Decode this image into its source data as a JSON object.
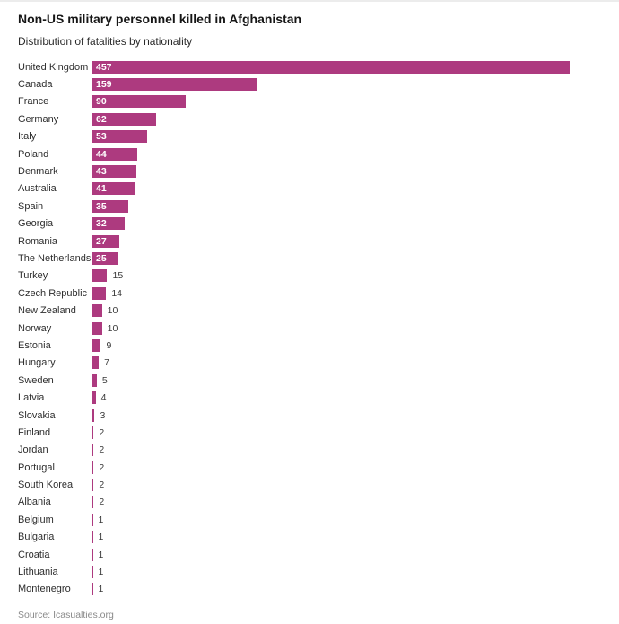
{
  "header": {
    "title": "Non-US military personnel killed in Afghanistan",
    "subtitle": "Distribution of fatalities by nationality"
  },
  "footer": {
    "source": "Source: Icasualties.org"
  },
  "chart_data": {
    "type": "bar",
    "orientation": "horizontal",
    "title": "Non-US military personnel killed in Afghanistan",
    "subtitle": "Distribution of fatalities by nationality",
    "categories": [
      "United Kingdom",
      "Canada",
      "France",
      "Germany",
      "Italy",
      "Poland",
      "Denmark",
      "Australia",
      "Spain",
      "Georgia",
      "Romania",
      "The Netherlands",
      "Turkey",
      "Czech Republic",
      "New Zealand",
      "Norway",
      "Estonia",
      "Hungary",
      "Sweden",
      "Latvia",
      "Slovakia",
      "Finland",
      "Jordan",
      "Portugal",
      "South Korea",
      "Albania",
      "Belgium",
      "Bulgaria",
      "Croatia",
      "Lithuania",
      "Montenegro"
    ],
    "values": [
      457,
      159,
      90,
      62,
      53,
      44,
      43,
      41,
      35,
      32,
      27,
      25,
      15,
      14,
      10,
      10,
      9,
      7,
      5,
      4,
      3,
      2,
      2,
      2,
      2,
      2,
      1,
      1,
      1,
      1,
      1
    ],
    "xlim": [
      0,
      457
    ],
    "grid": false,
    "legend": false,
    "bar_color": "#ad3a7f",
    "value_label_inside_color": "#ffffff",
    "value_label_outside_color": "#3a3a3a",
    "source": "Source: Icasualties.org"
  }
}
